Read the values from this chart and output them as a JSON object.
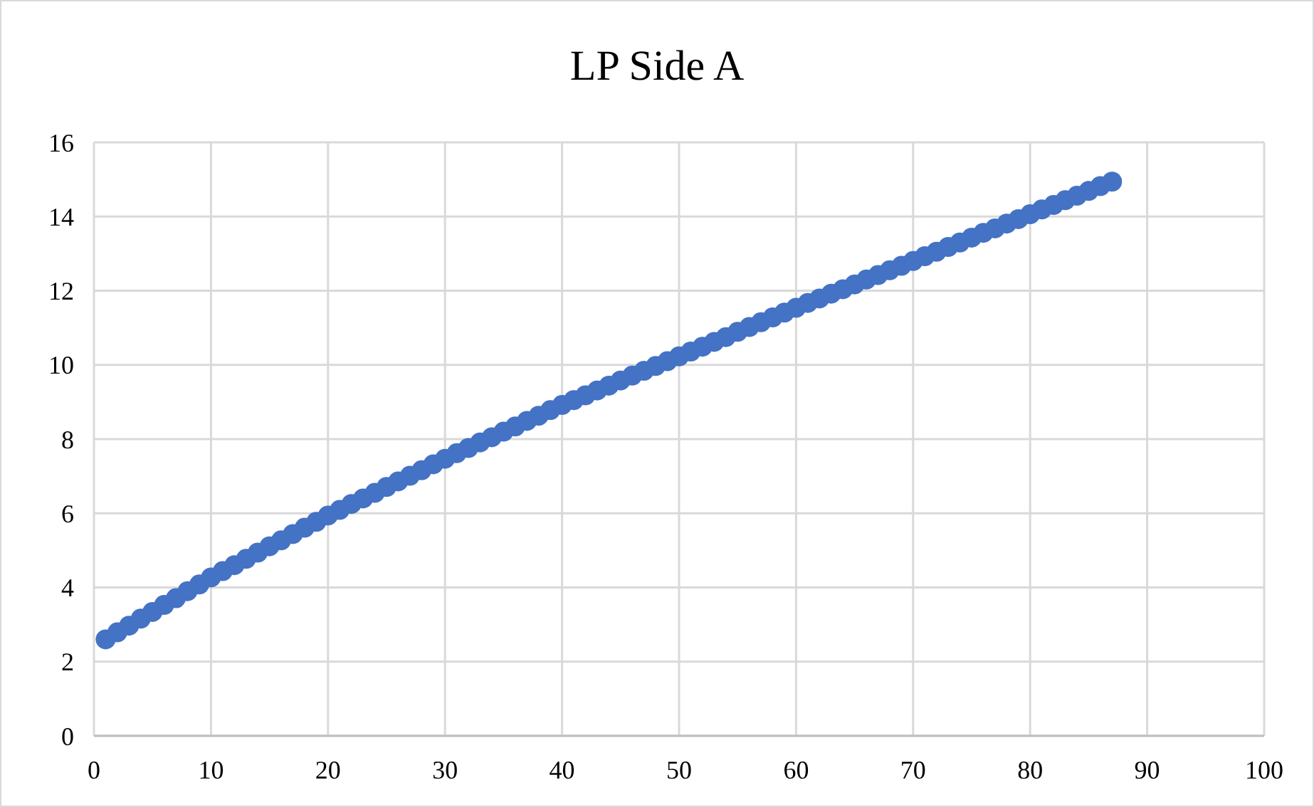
{
  "chart_data": {
    "type": "scatter",
    "title": "LP Side A",
    "x": [
      1,
      2,
      3,
      4,
      5,
      6,
      7,
      8,
      9,
      10,
      11,
      12,
      13,
      14,
      15,
      16,
      17,
      18,
      19,
      20,
      21,
      22,
      23,
      24,
      25,
      26,
      27,
      28,
      29,
      30,
      31,
      32,
      33,
      34,
      35,
      36,
      37,
      38,
      39,
      40,
      41,
      42,
      43,
      44,
      45,
      46,
      47,
      48,
      49,
      50,
      51,
      52,
      53,
      54,
      55,
      56,
      57,
      58,
      59,
      60,
      61,
      62,
      63,
      64,
      65,
      66,
      67,
      68,
      69,
      70,
      71,
      72,
      73,
      74,
      75,
      76,
      77,
      78,
      79,
      80,
      81,
      82,
      83,
      84,
      85,
      86,
      87
    ],
    "series": [
      {
        "color": "#4472c4",
        "values": [
          2.6,
          2.79,
          2.97,
          3.16,
          3.34,
          3.53,
          3.71,
          3.9,
          4.08,
          4.27,
          4.44,
          4.6,
          4.77,
          4.94,
          5.11,
          5.27,
          5.44,
          5.61,
          5.77,
          5.94,
          6.09,
          6.25,
          6.4,
          6.55,
          6.71,
          6.86,
          7.01,
          7.16,
          7.32,
          7.47,
          7.62,
          7.76,
          7.91,
          8.05,
          8.2,
          8.34,
          8.49,
          8.63,
          8.78,
          8.92,
          9.05,
          9.18,
          9.31,
          9.44,
          9.58,
          9.71,
          9.84,
          9.97,
          10.1,
          10.23,
          10.36,
          10.49,
          10.62,
          10.75,
          10.89,
          11.02,
          11.15,
          11.28,
          11.41,
          11.54,
          11.67,
          11.79,
          11.92,
          12.04,
          12.17,
          12.3,
          12.42,
          12.55,
          12.67,
          12.8,
          12.93,
          13.05,
          13.18,
          13.3,
          13.43,
          13.56,
          13.68,
          13.81,
          13.93,
          14.06,
          14.19,
          14.31,
          14.44,
          14.56,
          14.69,
          14.82,
          14.94
        ]
      }
    ],
    "xlim": [
      0,
      100
    ],
    "xticks": [
      0,
      10,
      20,
      30,
      40,
      50,
      60,
      70,
      80,
      90,
      100
    ],
    "ylim": [
      0,
      16
    ],
    "yticks": [
      0,
      2,
      4,
      6,
      8,
      10,
      12,
      14,
      16
    ],
    "grid": true,
    "marker": "circle"
  }
}
